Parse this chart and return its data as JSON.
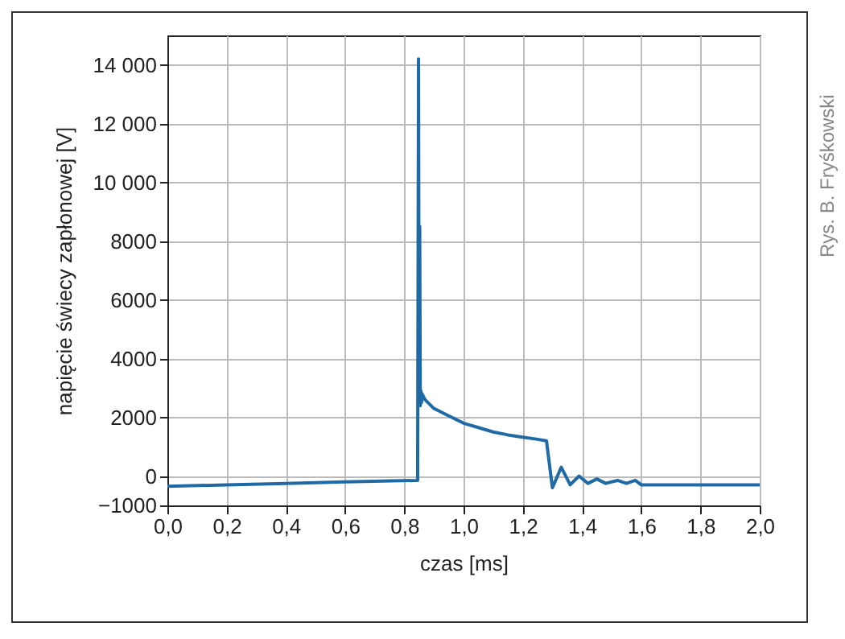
{
  "chart_data": {
    "type": "line",
    "xlabel": "czas [ms]",
    "ylabel": "napięcie świecy zapłonowej [V]",
    "annotations": [
      "Rys. B. Fryśkowski"
    ],
    "xlim": [
      0,
      2
    ],
    "ylim": [
      -1000,
      15000
    ],
    "xticks": [
      {
        "value": 0,
        "label": "0,0"
      },
      {
        "value": 0.2,
        "label": "0,2"
      },
      {
        "value": 0.4,
        "label": "0,4"
      },
      {
        "value": 0.6,
        "label": "0,6"
      },
      {
        "value": 0.8,
        "label": "0,8"
      },
      {
        "value": 1,
        "label": "1,0"
      },
      {
        "value": 1.2,
        "label": "1,2"
      },
      {
        "value": 1.4,
        "label": "1,4"
      },
      {
        "value": 1.6,
        "label": "1,6"
      },
      {
        "value": 1.8,
        "label": "1,8"
      },
      {
        "value": 2,
        "label": "2,0"
      }
    ],
    "yticks": [
      {
        "value": -1000,
        "label": "−1000"
      },
      0,
      2000,
      4000,
      6000,
      8000,
      {
        "value": 10000,
        "label": "10 000"
      },
      {
        "value": 12000,
        "label": "12 000"
      },
      {
        "value": 14000,
        "label": "14 000"
      }
    ],
    "grid": true,
    "series": [
      {
        "color": "#1f6aa5",
        "x": [
          0,
          0.2,
          0.4,
          0.6,
          0.84,
          0.845,
          0.848,
          0.85,
          0.852,
          0.854,
          0.856,
          0.858,
          0.86,
          0.87,
          0.9,
          0.95,
          1.0,
          1.05,
          1.1,
          1.15,
          1.2,
          1.25,
          1.28,
          1.3,
          1.33,
          1.36,
          1.39,
          1.42,
          1.45,
          1.48,
          1.5,
          1.52,
          1.55,
          1.58,
          1.6,
          1.8,
          2.0
        ],
        "values": [
          -350,
          -300,
          -250,
          -200,
          -150,
          -150,
          14200,
          2400,
          8500,
          2400,
          2900,
          2500,
          2800,
          2600,
          2300,
          2050,
          1800,
          1650,
          1500,
          1400,
          1320,
          1250,
          1200,
          -400,
          300,
          -300,
          0,
          -250,
          -100,
          -250,
          -200,
          -150,
          -250,
          -150,
          -300,
          -300,
          -300
        ]
      }
    ]
  }
}
